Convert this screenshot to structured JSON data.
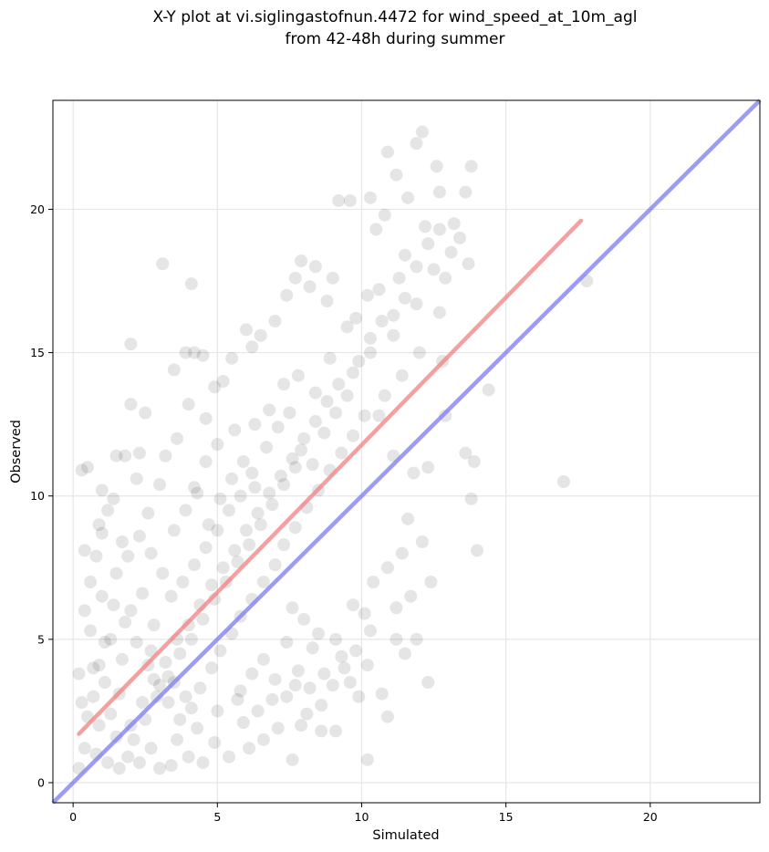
{
  "chart_data": {
    "type": "scatter",
    "title_line1": "X-Y plot at vi.siglingastofnun.4472 for wind_speed_at_10m_agl",
    "title_line2": "from 42-48h during summer",
    "xlabel": "Simulated",
    "ylabel": "Observed",
    "xlim": [
      -0.7,
      23.8
    ],
    "ylim": [
      -0.7,
      23.8
    ],
    "xticks": [
      0,
      5,
      10,
      15,
      20
    ],
    "yticks": [
      0,
      5,
      10,
      15,
      20
    ],
    "grid": true,
    "point_color": "#000000",
    "point_alpha": 0.1,
    "regression_line": {
      "color": "#f08080",
      "x": [
        0.2,
        17.6
      ],
      "y": [
        1.7,
        19.6
      ]
    },
    "identity_line": {
      "color": "#7b7bf0",
      "x": [
        -0.7,
        23.8
      ],
      "y": [
        -0.7,
        23.8
      ]
    },
    "scatter_points": [
      [
        0.2,
        3.8
      ],
      [
        0.3,
        10.9
      ],
      [
        0.5,
        11.0
      ],
      [
        0.4,
        8.1
      ],
      [
        0.6,
        7.0
      ],
      [
        0.8,
        7.9
      ],
      [
        1.0,
        8.7
      ],
      [
        1.2,
        9.5
      ],
      [
        1.5,
        11.4
      ],
      [
        1.8,
        11.4
      ],
      [
        2.0,
        15.3
      ],
      [
        2.0,
        13.2
      ],
      [
        2.5,
        12.9
      ],
      [
        2.3,
        11.5
      ],
      [
        2.2,
        10.6
      ],
      [
        3.1,
        18.1
      ],
      [
        4.1,
        17.4
      ],
      [
        3.5,
        14.4
      ],
      [
        3.9,
        15.0
      ],
      [
        4.2,
        15.0
      ],
      [
        4.5,
        14.9
      ],
      [
        4.0,
        13.2
      ],
      [
        3.0,
        10.4
      ],
      [
        3.2,
        11.4
      ],
      [
        1.0,
        10.2
      ],
      [
        1.4,
        9.9
      ],
      [
        0.9,
        9.0
      ],
      [
        1.7,
        8.4
      ],
      [
        2.6,
        9.4
      ],
      [
        3.6,
        12.0
      ],
      [
        4.6,
        12.7
      ],
      [
        4.9,
        13.8
      ],
      [
        5.2,
        14.0
      ],
      [
        5.5,
        14.8
      ],
      [
        6.0,
        15.8
      ],
      [
        6.2,
        15.2
      ],
      [
        6.5,
        15.6
      ],
      [
        7.0,
        16.1
      ],
      [
        7.4,
        17.0
      ],
      [
        7.7,
        17.6
      ],
      [
        7.9,
        18.2
      ],
      [
        8.4,
        18.0
      ],
      [
        8.2,
        17.3
      ],
      [
        8.8,
        16.8
      ],
      [
        9.0,
        17.6
      ],
      [
        9.5,
        15.9
      ],
      [
        9.2,
        20.3
      ],
      [
        9.6,
        20.3
      ],
      [
        10.3,
        20.4
      ],
      [
        10.5,
        19.3
      ],
      [
        10.8,
        19.8
      ],
      [
        10.9,
        22.0
      ],
      [
        11.2,
        21.2
      ],
      [
        11.6,
        20.4
      ],
      [
        11.9,
        22.3
      ],
      [
        12.1,
        22.7
      ],
      [
        11.5,
        18.4
      ],
      [
        12.2,
        19.4
      ],
      [
        12.6,
        21.5
      ],
      [
        12.7,
        20.6
      ],
      [
        13.2,
        19.5
      ],
      [
        13.8,
        21.5
      ],
      [
        13.6,
        20.6
      ],
      [
        13.4,
        19.0
      ],
      [
        13.7,
        18.1
      ],
      [
        12.9,
        17.6
      ],
      [
        12.7,
        16.4
      ],
      [
        11.9,
        16.7
      ],
      [
        11.1,
        16.3
      ],
      [
        10.6,
        17.2
      ],
      [
        10.2,
        17.0
      ],
      [
        9.8,
        16.2
      ],
      [
        11.3,
        17.6
      ],
      [
        12.5,
        17.9
      ],
      [
        12.0,
        15.0
      ],
      [
        12.8,
        14.7
      ],
      [
        11.4,
        14.2
      ],
      [
        10.8,
        13.5
      ],
      [
        10.3,
        15.0
      ],
      [
        9.7,
        14.3
      ],
      [
        8.9,
        14.8
      ],
      [
        8.4,
        13.6
      ],
      [
        7.8,
        14.2
      ],
      [
        7.3,
        13.9
      ],
      [
        6.8,
        13.0
      ],
      [
        6.3,
        12.5
      ],
      [
        5.6,
        12.3
      ],
      [
        5.0,
        11.8
      ],
      [
        4.6,
        11.2
      ],
      [
        4.2,
        10.3
      ],
      [
        10.6,
        12.8
      ],
      [
        11.1,
        11.4
      ],
      [
        11.8,
        10.8
      ],
      [
        12.3,
        11.0
      ],
      [
        12.9,
        12.8
      ],
      [
        13.6,
        11.5
      ],
      [
        14.4,
        13.7
      ],
      [
        13.9,
        11.2
      ],
      [
        13.8,
        9.9
      ],
      [
        14.0,
        8.1
      ],
      [
        17.0,
        10.5
      ],
      [
        17.8,
        17.5
      ],
      [
        11.6,
        9.2
      ],
      [
        12.1,
        8.4
      ],
      [
        11.4,
        8.0
      ],
      [
        10.9,
        7.5
      ],
      [
        11.7,
        6.5
      ],
      [
        12.4,
        7.0
      ],
      [
        11.2,
        6.1
      ],
      [
        10.4,
        7.0
      ],
      [
        10.1,
        5.9
      ],
      [
        9.7,
        6.2
      ],
      [
        10.3,
        5.3
      ],
      [
        9.3,
        4.4
      ],
      [
        9.1,
        5.0
      ],
      [
        8.5,
        5.2
      ],
      [
        8.3,
        4.7
      ],
      [
        8.0,
        5.7
      ],
      [
        7.6,
        6.1
      ],
      [
        7.4,
        4.9
      ],
      [
        11.2,
        5.0
      ],
      [
        11.9,
        5.0
      ],
      [
        12.3,
        3.5
      ],
      [
        11.5,
        4.5
      ],
      [
        10.9,
        2.3
      ],
      [
        10.7,
        3.1
      ],
      [
        10.2,
        0.8
      ],
      [
        9.9,
        3.0
      ],
      [
        9.1,
        1.8
      ],
      [
        8.6,
        1.8
      ],
      [
        8.1,
        2.4
      ],
      [
        7.9,
        2.0
      ],
      [
        7.6,
        0.8
      ],
      [
        7.1,
        1.9
      ],
      [
        6.6,
        1.5
      ],
      [
        6.1,
        1.2
      ],
      [
        5.9,
        2.1
      ],
      [
        5.4,
        0.9
      ],
      [
        4.9,
        1.4
      ],
      [
        4.5,
        0.7
      ],
      [
        4.0,
        0.9
      ],
      [
        3.4,
        0.6
      ],
      [
        3.0,
        0.5
      ],
      [
        2.7,
        1.2
      ],
      [
        2.3,
        0.7
      ],
      [
        1.9,
        0.9
      ],
      [
        1.6,
        0.5
      ],
      [
        1.2,
        0.7
      ],
      [
        0.8,
        1.0
      ],
      [
        0.4,
        1.2
      ],
      [
        0.2,
        0.5
      ],
      [
        0.5,
        2.3
      ],
      [
        0.7,
        3.0
      ],
      [
        0.3,
        2.8
      ],
      [
        0.9,
        4.1
      ],
      [
        1.1,
        3.5
      ],
      [
        1.3,
        5.0
      ],
      [
        0.6,
        5.3
      ],
      [
        0.4,
        6.0
      ],
      [
        1.0,
        6.5
      ],
      [
        1.4,
        6.2
      ],
      [
        1.8,
        5.6
      ],
      [
        2.2,
        4.9
      ],
      [
        2.6,
        4.1
      ],
      [
        3.0,
        3.4
      ],
      [
        3.3,
        2.8
      ],
      [
        3.7,
        2.2
      ],
      [
        4.1,
        2.6
      ],
      [
        4.4,
        3.3
      ],
      [
        4.8,
        4.0
      ],
      [
        5.1,
        4.6
      ],
      [
        5.5,
        5.2
      ],
      [
        5.8,
        5.8
      ],
      [
        6.2,
        6.4
      ],
      [
        6.6,
        7.0
      ],
      [
        7.0,
        7.6
      ],
      [
        7.3,
        8.3
      ],
      [
        7.7,
        8.9
      ],
      [
        8.1,
        9.6
      ],
      [
        8.5,
        10.2
      ],
      [
        8.9,
        10.9
      ],
      [
        9.3,
        11.5
      ],
      [
        9.7,
        12.1
      ],
      [
        10.1,
        12.8
      ],
      [
        1.3,
        2.4
      ],
      [
        1.6,
        3.1
      ],
      [
        2.0,
        2.0
      ],
      [
        2.4,
        2.8
      ],
      [
        2.8,
        3.6
      ],
      [
        3.2,
        4.2
      ],
      [
        3.6,
        5.0
      ],
      [
        4.0,
        5.5
      ],
      [
        4.4,
        6.2
      ],
      [
        4.8,
        6.9
      ],
      [
        5.2,
        7.5
      ],
      [
        5.6,
        8.1
      ],
      [
        6.0,
        8.8
      ],
      [
        6.4,
        9.4
      ],
      [
        6.8,
        10.1
      ],
      [
        7.2,
        10.7
      ],
      [
        7.6,
        11.3
      ],
      [
        8.0,
        12.0
      ],
      [
        8.4,
        12.6
      ],
      [
        8.8,
        13.3
      ],
      [
        9.2,
        13.9
      ],
      [
        2.1,
        1.5
      ],
      [
        2.5,
        2.2
      ],
      [
        2.9,
        3.0
      ],
      [
        3.3,
        3.7
      ],
      [
        3.7,
        4.5
      ],
      [
        4.1,
        5.0
      ],
      [
        4.5,
        5.7
      ],
      [
        4.9,
        6.4
      ],
      [
        5.3,
        7.0
      ],
      [
        5.7,
        7.7
      ],
      [
        6.1,
        8.3
      ],
      [
        6.5,
        9.0
      ],
      [
        6.9,
        9.7
      ],
      [
        7.3,
        10.4
      ],
      [
        7.7,
        11.0
      ],
      [
        1.5,
        7.3
      ],
      [
        1.9,
        7.9
      ],
      [
        2.3,
        8.6
      ],
      [
        2.7,
        8.0
      ],
      [
        3.1,
        7.3
      ],
      [
        3.5,
        8.8
      ],
      [
        3.9,
        9.5
      ],
      [
        4.3,
        10.1
      ],
      [
        4.7,
        9.0
      ],
      [
        5.1,
        9.9
      ],
      [
        5.5,
        10.6
      ],
      [
        5.9,
        11.2
      ],
      [
        6.3,
        10.3
      ],
      [
        6.7,
        11.7
      ],
      [
        7.1,
        12.4
      ],
      [
        7.5,
        12.9
      ],
      [
        7.9,
        11.6
      ],
      [
        8.3,
        11.1
      ],
      [
        8.7,
        12.2
      ],
      [
        9.1,
        12.9
      ],
      [
        9.5,
        13.5
      ],
      [
        9.9,
        14.7
      ],
      [
        10.3,
        15.5
      ],
      [
        10.7,
        16.1
      ],
      [
        11.1,
        15.6
      ],
      [
        11.5,
        16.9
      ],
      [
        11.9,
        18.0
      ],
      [
        12.3,
        18.8
      ],
      [
        12.7,
        19.3
      ],
      [
        13.1,
        18.5
      ],
      [
        5.8,
        3.2
      ],
      [
        6.2,
        3.8
      ],
      [
        6.6,
        4.3
      ],
      [
        7.0,
        3.6
      ],
      [
        7.4,
        3.0
      ],
      [
        7.8,
        3.9
      ],
      [
        8.2,
        3.3
      ],
      [
        8.6,
        2.7
      ],
      [
        9.0,
        3.4
      ],
      [
        9.4,
        4.0
      ],
      [
        9.8,
        4.6
      ],
      [
        10.2,
        4.1
      ],
      [
        3.4,
        6.5
      ],
      [
        3.8,
        7.0
      ],
      [
        4.2,
        7.6
      ],
      [
        4.6,
        8.2
      ],
      [
        5.0,
        8.8
      ],
      [
        5.4,
        9.5
      ],
      [
        5.8,
        10.0
      ],
      [
        6.2,
        10.8
      ],
      [
        2.0,
        6.0
      ],
      [
        2.4,
        6.6
      ],
      [
        2.8,
        5.5
      ],
      [
        1.7,
        4.3
      ],
      [
        1.1,
        4.9
      ],
      [
        0.7,
        4.0
      ],
      [
        0.9,
        2.0
      ],
      [
        1.5,
        1.6
      ],
      [
        3.6,
        1.5
      ],
      [
        4.3,
        1.9
      ],
      [
        5.0,
        2.5
      ],
      [
        5.7,
        2.9
      ],
      [
        6.4,
        2.5
      ],
      [
        6.9,
        2.9
      ],
      [
        7.7,
        3.4
      ],
      [
        8.7,
        3.8
      ],
      [
        9.6,
        3.5
      ],
      [
        3.9,
        3.0
      ],
      [
        3.5,
        3.5
      ],
      [
        2.7,
        4.6
      ]
    ]
  }
}
